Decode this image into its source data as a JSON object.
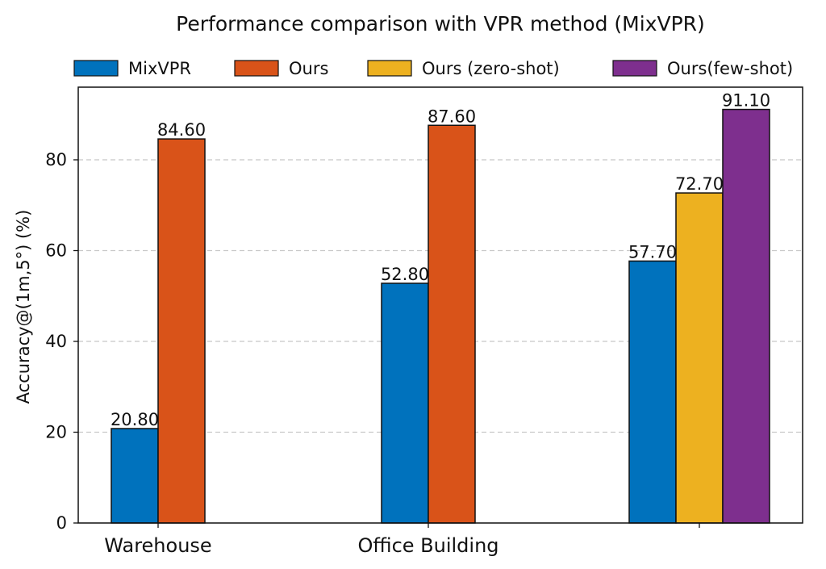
{
  "chart_data": {
    "type": "bar",
    "title": "Performance comparison with VPR method (MixVPR)",
    "xlabel": "",
    "ylabel": "Accuracy@(1m,5°) (%)",
    "ylim": [
      0,
      96
    ],
    "yticks": [
      0,
      20,
      40,
      60,
      80
    ],
    "grid": "y-dashed",
    "legend_position": "top",
    "categories": [
      "Warehouse",
      "Office Building",
      ""
    ],
    "series": [
      {
        "name": "MixVPR",
        "color": "#0072BD",
        "values": [
          20.8,
          52.8,
          57.7
        ],
        "labels": [
          "20.80",
          "52.80",
          "57.70"
        ]
      },
      {
        "name": "Ours",
        "color": "#D95319",
        "values": [
          84.6,
          87.6,
          null
        ],
        "labels": [
          "84.60",
          "87.60",
          ""
        ]
      },
      {
        "name": "Ours (zero-shot)",
        "color": "#EDB120",
        "values": [
          null,
          null,
          72.7
        ],
        "labels": [
          "",
          "",
          "72.70"
        ]
      },
      {
        "name": "Ours(few-shot)",
        "color": "#7E2F8E",
        "values": [
          null,
          null,
          91.1
        ],
        "labels": [
          "",
          "",
          "91.10"
        ]
      }
    ]
  }
}
